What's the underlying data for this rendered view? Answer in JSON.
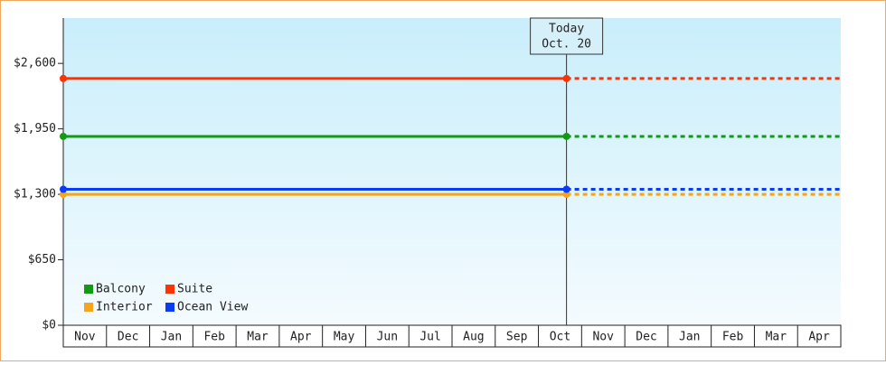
{
  "chart_data": {
    "type": "line",
    "categories": [
      "Nov",
      "Dec",
      "Jan",
      "Feb",
      "Mar",
      "Apr",
      "May",
      "Jun",
      "Jul",
      "Aug",
      "Sep",
      "Oct",
      "Nov",
      "Dec",
      "Jan",
      "Feb",
      "Mar",
      "Apr"
    ],
    "x": [
      0,
      11.65
    ],
    "xlim": [
      0,
      18
    ],
    "series": [
      {
        "name": "Balcony",
        "color": "#139a13",
        "values": [
          1875,
          1875
        ]
      },
      {
        "name": "Suite",
        "color": "#ff3300",
        "values": [
          2450,
          2450
        ]
      },
      {
        "name": "Interior",
        "color": "#f5a51c",
        "values": [
          1300,
          1300
        ]
      },
      {
        "name": "Ocean View",
        "color": "#0a3cf5",
        "values": [
          1350,
          1350
        ]
      }
    ],
    "ylim": [
      0,
      3050
    ],
    "yticks": [
      {
        "value": 0,
        "label": "$0"
      },
      {
        "value": 650,
        "label": "$650"
      },
      {
        "value": 1300,
        "label": "$1,300"
      },
      {
        "value": 1950,
        "label": "$1,950"
      },
      {
        "value": 2600,
        "label": "$2,600"
      }
    ],
    "annotation": {
      "lines": [
        "Today",
        "Oct. 20"
      ],
      "x": 11.65
    },
    "legend": "bottom-left"
  }
}
